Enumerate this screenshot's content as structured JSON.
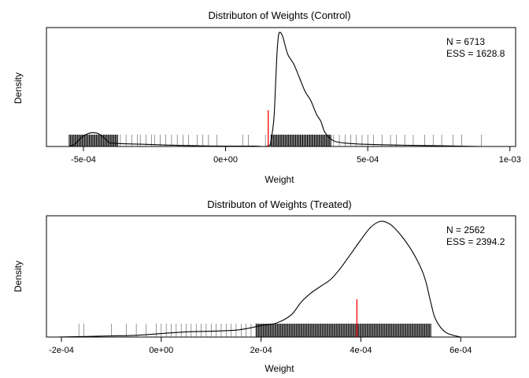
{
  "chart_data": [
    {
      "type": "density",
      "title": "Distributon of Weights (Control)",
      "xlabel": "Weight",
      "ylabel": "Density",
      "xlim": [
        -0.00063,
        0.00102
      ],
      "x_ticks": [
        -0.0005,
        0.0,
        0.0005,
        0.001
      ],
      "x_tick_labels": [
        "-5e-04",
        "0e+00",
        "5e-04",
        "1e-03"
      ],
      "stats": [
        "N = 6713",
        "ESS = 1628.8"
      ],
      "stats_placement": "top-right",
      "mean_marker": {
        "x": 0.00015,
        "color": "#ff0000"
      },
      "density_curve": [
        [
          -0.00055,
          0.0
        ],
        [
          -0.00053,
          0.02
        ],
        [
          -0.000515,
          0.06
        ],
        [
          -0.000495,
          0.1
        ],
        [
          -0.00047,
          0.12
        ],
        [
          -0.000445,
          0.11
        ],
        [
          -0.00042,
          0.06
        ],
        [
          -0.0004,
          0.03
        ],
        [
          -0.0003,
          0.02
        ],
        [
          -0.0002,
          0.012
        ],
        [
          -0.0001,
          0.006
        ],
        [
          0.0,
          0.003
        ],
        [
          0.0001,
          0.003
        ],
        [
          0.00015,
          0.004
        ],
        [
          0.00016,
          0.06
        ],
        [
          0.00017,
          0.25
        ],
        [
          0.000175,
          0.5
        ],
        [
          0.00018,
          0.78
        ],
        [
          0.000185,
          0.95
        ],
        [
          0.00019,
          1.0
        ],
        [
          0.0002,
          0.97
        ],
        [
          0.00021,
          0.88
        ],
        [
          0.00022,
          0.8
        ],
        [
          0.00024,
          0.72
        ],
        [
          0.00026,
          0.6
        ],
        [
          0.00028,
          0.48
        ],
        [
          0.0003,
          0.4
        ],
        [
          0.00032,
          0.28
        ],
        [
          0.000335,
          0.22
        ],
        [
          0.00035,
          0.12
        ],
        [
          0.00038,
          0.05
        ],
        [
          0.00042,
          0.03
        ],
        [
          0.00048,
          0.02
        ],
        [
          0.00055,
          0.015
        ],
        [
          0.0007,
          0.008
        ],
        [
          0.0008,
          0.004
        ],
        [
          0.0009,
          0.0
        ]
      ],
      "rug": {
        "dense_ranges": [
          [
            -0.00055,
            -0.00038
          ],
          [
            0.00016,
            0.00037
          ]
        ],
        "sparse_points": [
          -0.00037,
          -0.00035,
          -0.00033,
          -0.00031,
          -0.0003,
          -0.00028,
          -0.00026,
          -0.00025,
          -0.00023,
          -0.00021,
          -0.00019,
          -0.00017,
          -0.00015,
          -0.00013,
          -0.0001,
          -8e-05,
          -6e-05,
          -3e-05,
          6e-05,
          8e-05,
          0.00014,
          0.00038,
          0.0004,
          0.00042,
          0.00044,
          0.00046,
          0.00048,
          0.0005,
          0.00052,
          0.00055,
          0.00058,
          0.0006,
          0.00063,
          0.00066,
          0.0007,
          0.00073,
          0.00076,
          0.0008,
          0.00083,
          0.0009
        ]
      }
    },
    {
      "type": "density",
      "title": "Distributon of Weights (Treated)",
      "xlabel": "Weight",
      "ylabel": "Density",
      "xlim": [
        -0.00023,
        0.00071
      ],
      "x_ticks": [
        -0.0002,
        0.0,
        0.0002,
        0.0004,
        0.0006
      ],
      "x_tick_labels": [
        "-2e-04",
        "0e+00",
        "2e-04",
        "4e-04",
        "6e-04"
      ],
      "stats": [
        "N = 2562",
        "ESS = 2394.2"
      ],
      "stats_placement": "top-right",
      "mean_marker": {
        "x": 0.000392,
        "color": "#ff0000"
      },
      "density_curve": [
        [
          -0.00021,
          0.0
        ],
        [
          -0.00015,
          0.005
        ],
        [
          -0.0001,
          0.01
        ],
        [
          -5e-05,
          0.015
        ],
        [
          0.0,
          0.03
        ],
        [
          5e-05,
          0.045
        ],
        [
          0.0001,
          0.05
        ],
        [
          0.00015,
          0.06
        ],
        [
          0.00018,
          0.08
        ],
        [
          0.0002,
          0.1
        ],
        [
          0.00023,
          0.12
        ],
        [
          0.00026,
          0.19
        ],
        [
          0.00028,
          0.3
        ],
        [
          0.0003,
          0.38
        ],
        [
          0.00032,
          0.44
        ],
        [
          0.00034,
          0.5
        ],
        [
          0.00036,
          0.6
        ],
        [
          0.00038,
          0.72
        ],
        [
          0.0004,
          0.84
        ],
        [
          0.00042,
          0.95
        ],
        [
          0.00044,
          1.0
        ],
        [
          0.00046,
          0.97
        ],
        [
          0.00048,
          0.88
        ],
        [
          0.0005,
          0.76
        ],
        [
          0.00052,
          0.6
        ],
        [
          0.00053,
          0.48
        ],
        [
          0.00054,
          0.3
        ],
        [
          0.00055,
          0.15
        ],
        [
          0.00057,
          0.04
        ],
        [
          0.0006,
          0.0
        ]
      ],
      "rug": {
        "dense_ranges": [
          [
            0.00019,
            0.00054
          ]
        ],
        "sparse_points": [
          -0.000165,
          -0.000155,
          -0.0001,
          -7e-05,
          -5e-05,
          -3e-05,
          -1e-05,
          0.0,
          1e-05,
          2e-05,
          3e-05,
          4e-05,
          5e-05,
          6e-05,
          7e-05,
          8e-05,
          9e-05,
          0.0001,
          0.00011,
          0.00012,
          0.00013,
          0.00014,
          0.00015,
          0.00016,
          0.00017,
          0.00018
        ]
      }
    }
  ]
}
